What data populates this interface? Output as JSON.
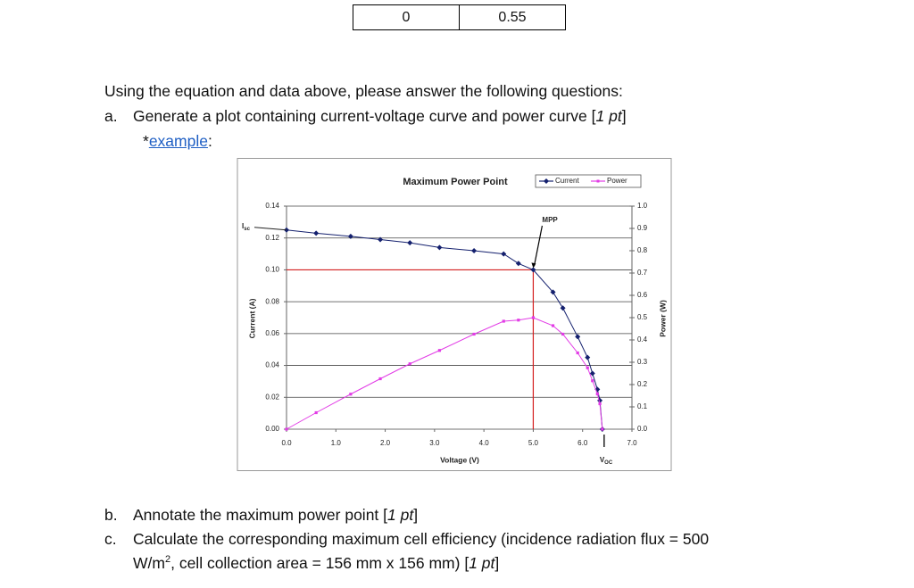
{
  "table": {
    "rows": [
      [
        "0",
        "0.55"
      ]
    ]
  },
  "intro": "Using the equation and data above, please answer the following questions:",
  "questions": [
    {
      "marker": "a.",
      "parts": [
        "Generate a plot containing current-voltage curve and power curve [",
        "1 pt",
        "]"
      ]
    },
    {
      "marker": "b.",
      "parts": [
        "Annotate the maximum power point [",
        "1 pt",
        "]"
      ]
    },
    {
      "marker": "c.",
      "parts": [
        "Calculate the corresponding maximum cell efficiency (incidence radiation flux = 500",
        "W/m",
        "2",
        ", cell collection area = 156 mm x 156 mm) [",
        "1 pt",
        "]"
      ]
    }
  ],
  "example": {
    "prefix": "*",
    "link": "example",
    "suffix": ":"
  },
  "chart_data": {
    "type": "line",
    "title": "Maximum Power Point",
    "x_label": "Voltage (V)",
    "y_label": "Current (A)",
    "y2_label": "Power (W)",
    "annotations": {
      "mpp": "MPP",
      "isc": {
        "main": "I",
        "sub": "sc"
      },
      "voc": {
        "main": "V",
        "sub": "OC"
      }
    },
    "x": [
      0,
      0.6,
      1.3,
      1.9,
      2.5,
      3.1,
      3.8,
      4.4,
      4.7,
      5.0,
      5.4,
      5.6,
      5.9,
      6.1,
      6.2,
      6.3,
      6.35,
      6.4
    ],
    "series": [
      {
        "name": "Current",
        "color": "#14206e",
        "values": [
          0.125,
          0.123,
          0.121,
          0.119,
          0.117,
          0.114,
          0.112,
          0.11,
          0.104,
          0.1,
          0.086,
          0.076,
          0.058,
          0.045,
          0.035,
          0.025,
          0.018,
          0.0
        ]
      },
      {
        "name": "Power",
        "color": "#e23ce6",
        "axis": "y2",
        "values": [
          0,
          0.074,
          0.157,
          0.226,
          0.293,
          0.353,
          0.426,
          0.484,
          0.489,
          0.5,
          0.464,
          0.426,
          0.342,
          0.275,
          0.217,
          0.158,
          0.114,
          0
        ]
      }
    ],
    "xlim": [
      0,
      7
    ],
    "xticks": [
      {
        "value": 0,
        "label": "0.0"
      },
      {
        "value": 1,
        "label": "1.0"
      },
      {
        "value": 2,
        "label": "2.0"
      },
      {
        "value": 3,
        "label": "3.0"
      },
      {
        "value": 4,
        "label": "4.0"
      },
      {
        "value": 5,
        "label": "5.0"
      },
      {
        "value": 6,
        "label": "6.0"
      },
      {
        "value": 7,
        "label": "7.0"
      }
    ],
    "ylim": [
      0,
      0.14
    ],
    "yticks": [
      {
        "value": 0,
        "label": "0.00"
      },
      {
        "value": 0.02,
        "label": "0.02"
      },
      {
        "value": 0.04,
        "label": "0.04"
      },
      {
        "value": 0.06,
        "label": "0.06"
      },
      {
        "value": 0.08,
        "label": "0.08"
      },
      {
        "value": 0.1,
        "label": "0.10"
      },
      {
        "value": 0.12,
        "label": "0.12"
      },
      {
        "value": 0.14,
        "label": "0.14"
      }
    ],
    "y2lim": [
      0,
      1
    ],
    "y2ticks": [
      {
        "value": 0,
        "label": "0.0"
      },
      {
        "value": 0.1,
        "label": "0.1"
      },
      {
        "value": 0.2,
        "label": "0.2"
      },
      {
        "value": 0.3,
        "label": "0.3"
      },
      {
        "value": 0.4,
        "label": "0.4"
      },
      {
        "value": 0.5,
        "label": "0.5"
      },
      {
        "value": 0.6,
        "label": "0.6"
      },
      {
        "value": 0.7,
        "label": "0.7"
      },
      {
        "value": 0.8,
        "label": "0.8"
      },
      {
        "value": 0.9,
        "label": "0.9"
      },
      {
        "value": 1,
        "label": "1.0"
      }
    ],
    "grid": true,
    "legend": "top-right",
    "guide_color": "#d42020"
  }
}
